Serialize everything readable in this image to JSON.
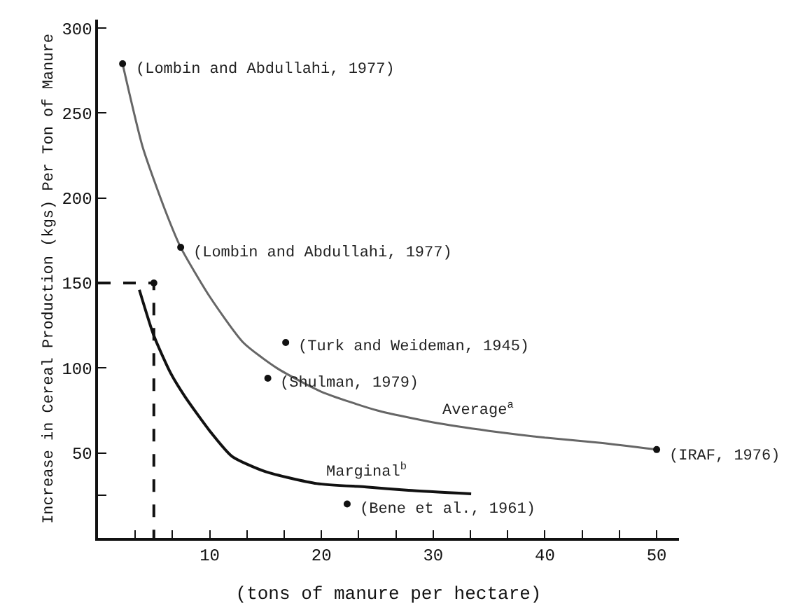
{
  "chart_data": {
    "type": "line",
    "xlabel": "(tons of manure per hectare)",
    "ylabel": "Increase in Cereal Production (kgs) Per Ton of Manure",
    "xlim": [
      0,
      52
    ],
    "ylim": [
      0,
      305
    ],
    "xticks": [
      {
        "value": 3.33,
        "label": null
      },
      {
        "value": 6.67,
        "label": null
      },
      10,
      {
        "value": 13.33,
        "label": null
      },
      {
        "value": 16.67,
        "label": null
      },
      20,
      {
        "value": 23.33,
        "label": null
      },
      {
        "value": 26.67,
        "label": null
      },
      30,
      {
        "value": 33.33,
        "label": null
      },
      {
        "value": 36.67,
        "label": null
      },
      40,
      {
        "value": 43.33,
        "label": null
      },
      {
        "value": 46.67,
        "label": null
      },
      50
    ],
    "yticks": [
      {
        "value": 25,
        "label": null
      },
      50,
      100,
      150,
      200,
      250,
      300
    ],
    "grid": false,
    "legend": false,
    "series": [
      {
        "color": "#666666",
        "line_style": "solid",
        "x": [
          2.2,
          4,
          6,
          7.4,
          10,
          13,
          16,
          20,
          25,
          30,
          35,
          40,
          45,
          50
        ],
        "values": [
          279,
          230,
          193,
          171,
          142,
          115,
          100,
          86,
          75,
          68,
          63,
          59,
          56,
          52
        ]
      },
      {
        "color": "#111111",
        "line_style": "solid",
        "x": [
          3.7,
          5,
          6.5,
          7.8,
          10,
          12,
          15,
          19.6,
          24,
          27.8,
          33.4
        ],
        "values": [
          146,
          119,
          97,
          83,
          63,
          48,
          39,
          32,
          30,
          28,
          26
        ]
      },
      {
        "color": "#111111",
        "line_style": "dashed",
        "x": [
          0,
          5,
          5
        ],
        "values": [
          150,
          150,
          0
        ]
      },
      {
        "type": "scatter",
        "color": "#111111",
        "marker": "circle",
        "x": [
          2.2,
          7.4,
          16.8,
          15.2,
          5,
          22.3,
          50
        ],
        "values": [
          279,
          171,
          115,
          94,
          150,
          20,
          52
        ]
      }
    ],
    "annotations": [
      {
        "text": "(Lombin and Abdullahi, 1977)",
        "x": 2.2,
        "y": 279
      },
      {
        "text": "(Lombin and Abdullahi, 1977)",
        "x": 7.4,
        "y": 171
      },
      {
        "text": "(Turk and Weideman, 1945)",
        "x": 16.8,
        "y": 115
      },
      {
        "text": "(Shulman, 1979)",
        "x": 15.2,
        "y": 94
      },
      {
        "text": "(Bene et al., 1961)",
        "x": 22.3,
        "y": 20
      },
      {
        "text": "(IRAF, 1976)",
        "x": 50,
        "y": 51.5
      },
      {
        "text": "Average$^{a}$",
        "x": 34,
        "y": 66
      },
      {
        "text": "Marginal$^{b}$",
        "x": 24,
        "y": 30
      }
    ]
  }
}
